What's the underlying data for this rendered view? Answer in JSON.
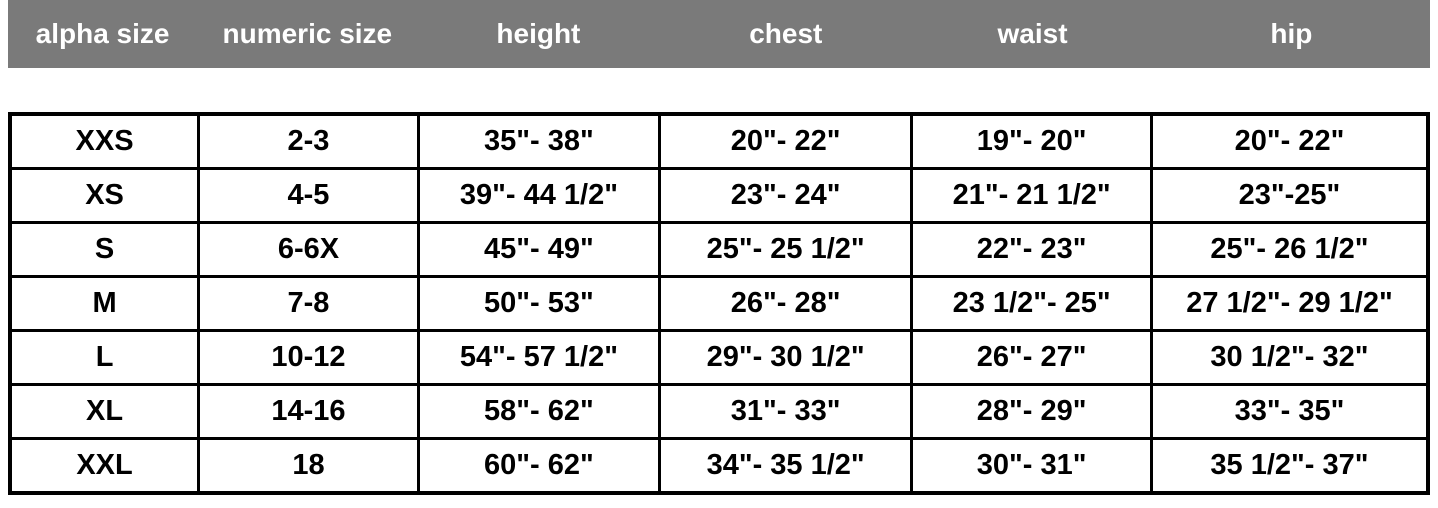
{
  "chart_data": {
    "type": "table",
    "columns": [
      "alpha size",
      "numeric size",
      "height",
      "chest",
      "waist",
      "hip"
    ],
    "rows": [
      [
        "XXS",
        "2-3",
        "35\"- 38\"",
        "20\"- 22\"",
        "19\"- 20\"",
        "20\"- 22\""
      ],
      [
        "XS",
        "4-5",
        "39\"- 44 1/2\"",
        "23\"- 24\"",
        "21\"- 21 1/2\"",
        "23\"-25\""
      ],
      [
        "S",
        "6-6X",
        "45\"- 49\"",
        "25\"- 25 1/2\"",
        "22\"- 23\"",
        "25\"- 26 1/2\""
      ],
      [
        "M",
        "7-8",
        "50\"- 53\"",
        "26\"- 28\"",
        "23 1/2\"- 25\"",
        "27 1/2\"- 29 1/2\""
      ],
      [
        "L",
        "10-12",
        "54\"- 57 1/2\"",
        "29\"- 30 1/2\"",
        "26\"- 27\"",
        "30 1/2\"- 32\""
      ],
      [
        "XL",
        "14-16",
        "58\"- 62\"",
        "31\"- 33\"",
        "28\"- 29\"",
        "33\"- 35\""
      ],
      [
        "XXL",
        "18",
        "60\"- 62\"",
        "34\"- 35 1/2\"",
        "30\"- 31\"",
        "35 1/2\"- 37\""
      ]
    ],
    "layout": {
      "grid": "black cell borders",
      "header_position": "top strip, detached from grid"
    }
  },
  "colors": {
    "header_bg": "#7a7a7a",
    "header_text": "#ffffff",
    "cell_text": "#000000",
    "border": "#000000",
    "page_bg": "#ffffff"
  }
}
